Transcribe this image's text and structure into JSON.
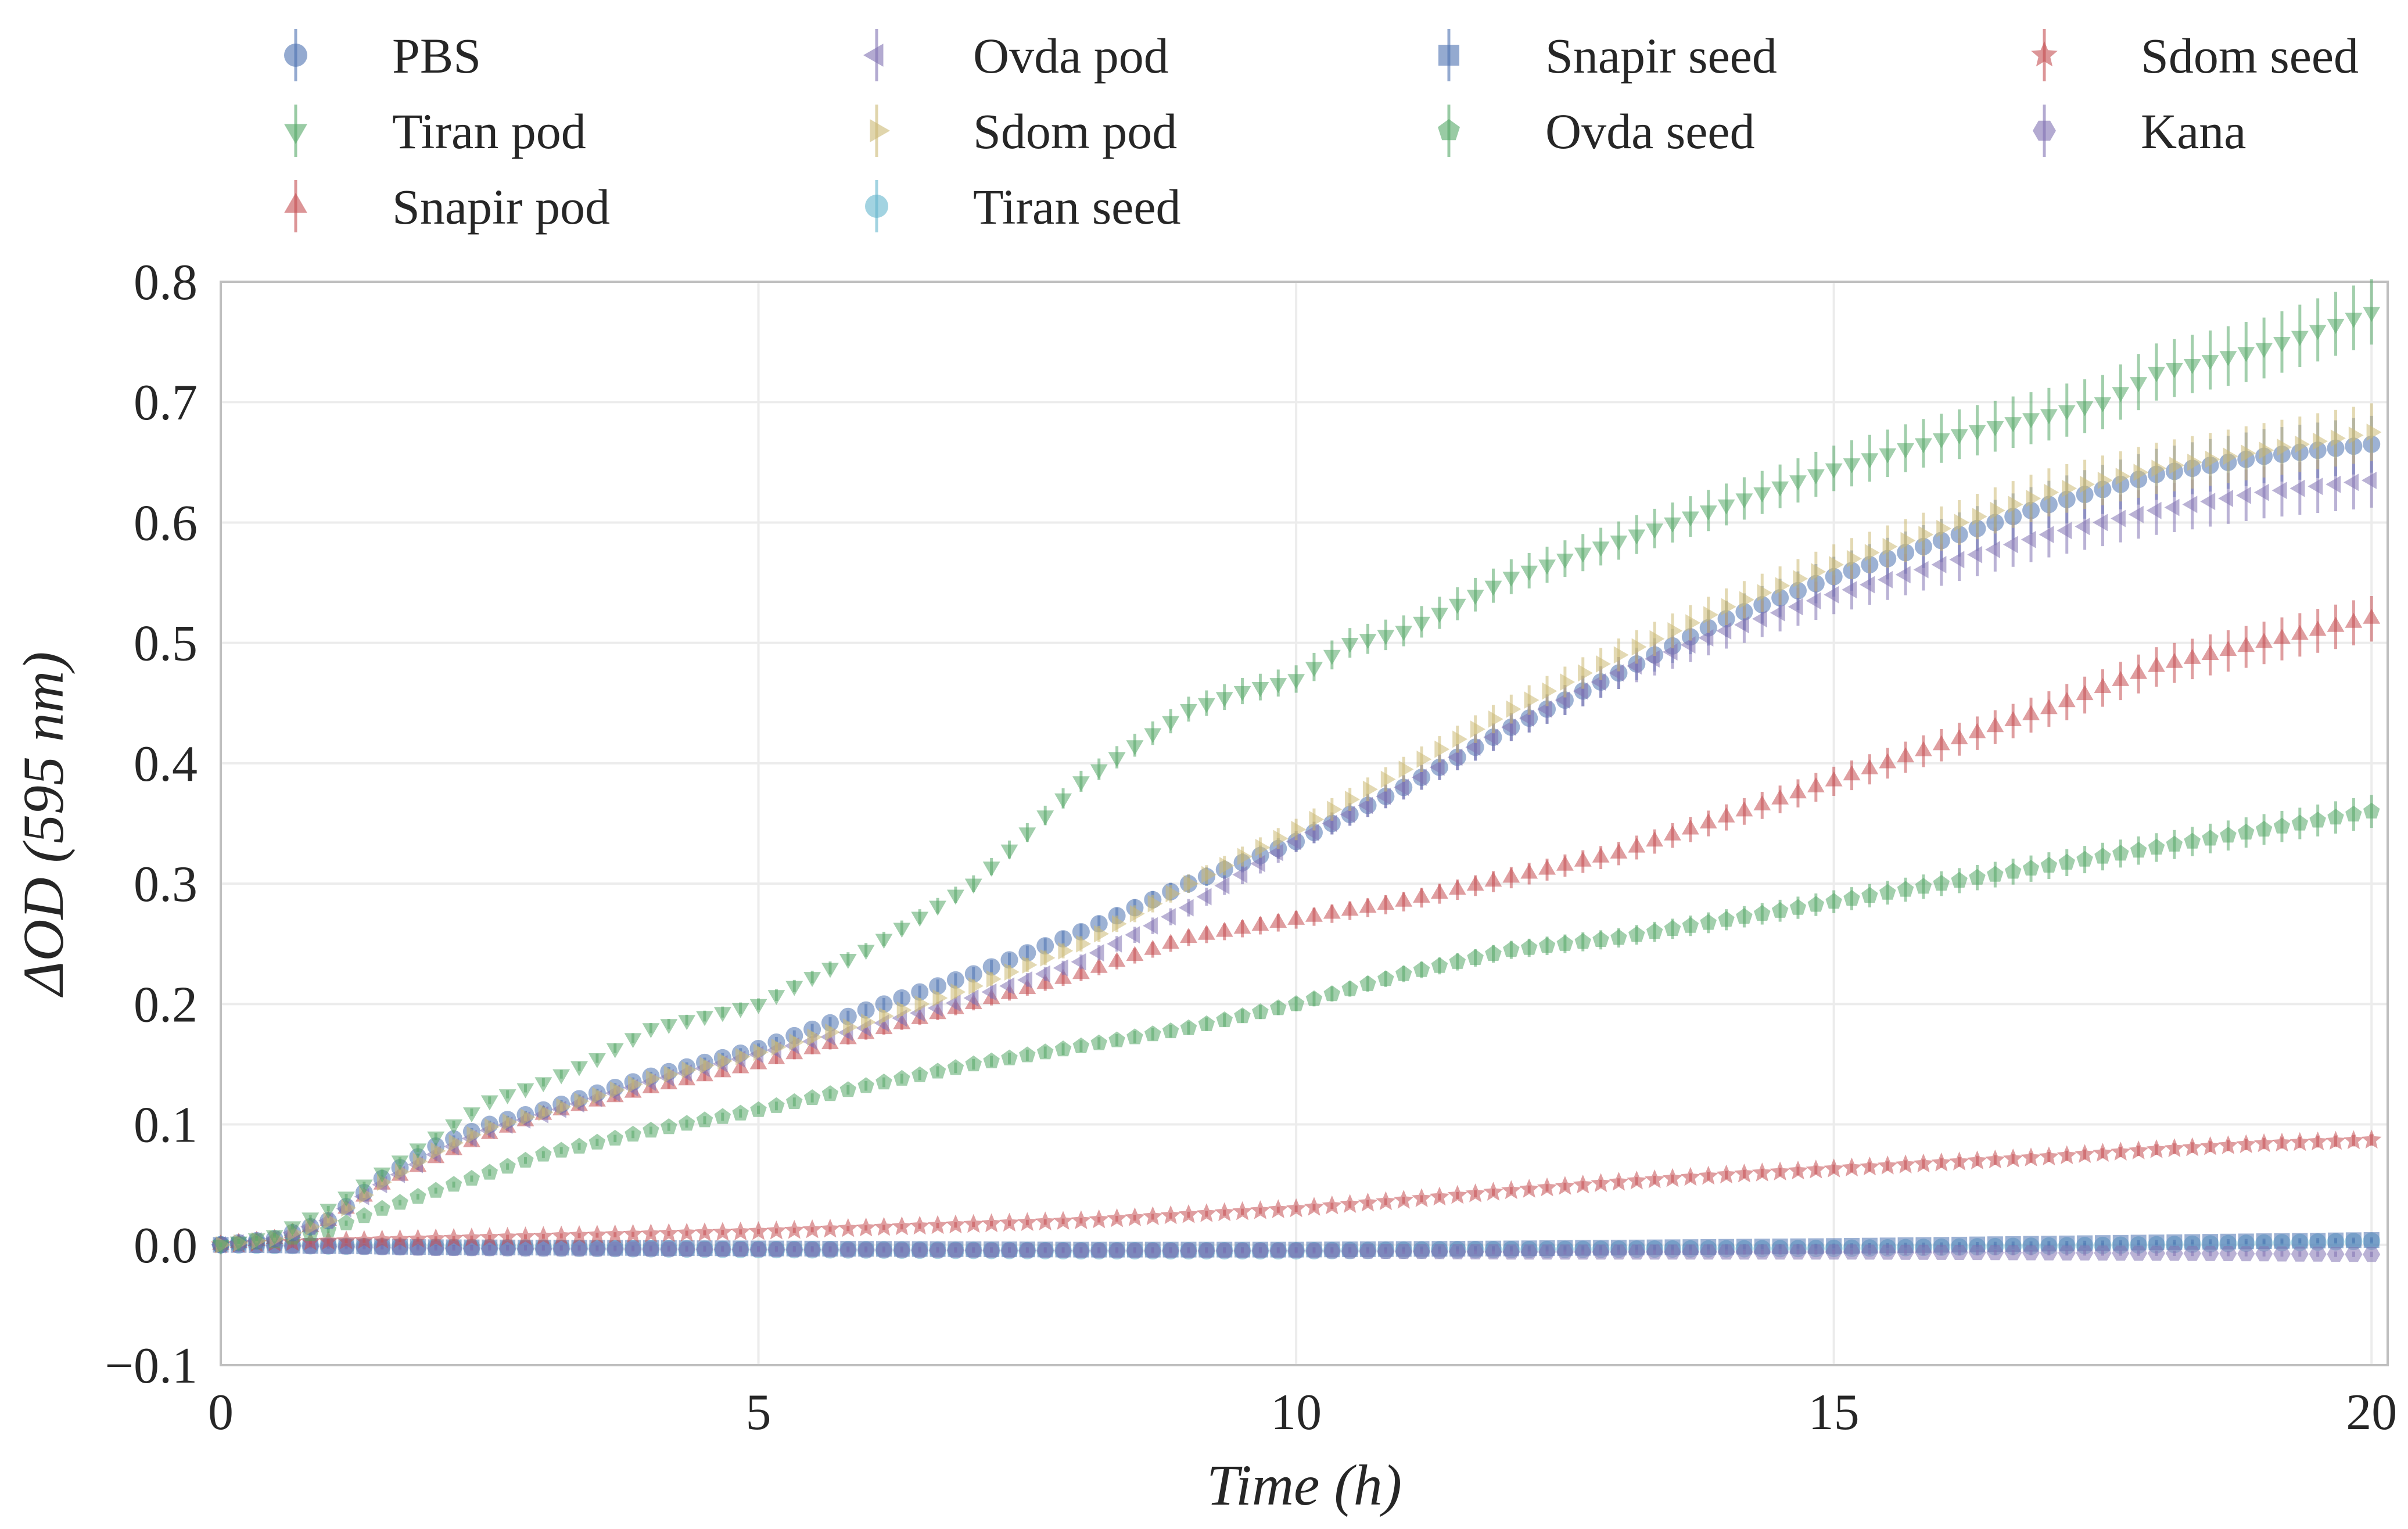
{
  "chart_data": {
    "type": "scatter",
    "title": "",
    "xlabel": "Time (h)",
    "ylabel": "ΔOD (595 nm)",
    "xlim": [
      0,
      20.15
    ],
    "ylim": [
      -0.1,
      0.8
    ],
    "xticks": [
      0,
      5,
      10,
      15,
      20
    ],
    "xtick_labels": [
      "0",
      "5",
      "10",
      "15",
      "20"
    ],
    "yticks": [
      -0.1,
      0.0,
      0.1,
      0.2,
      0.3,
      0.4,
      0.5,
      0.6,
      0.7,
      0.8
    ],
    "ytick_labels": [
      "−0.1",
      "0.0",
      "0.1",
      "0.2",
      "0.3",
      "0.4",
      "0.5",
      "0.6",
      "0.7",
      "0.8"
    ],
    "grid": true,
    "legend_position": "top, above plot, 4 columns",
    "error_bars": true,
    "series": [
      {
        "name": "PBS",
        "marker": "circle",
        "color": "#4C72B0",
        "points": [
          [
            0,
            0
          ],
          [
            0.5,
            0.005
          ],
          [
            1,
            0.02
          ],
          [
            1.5,
            0.055
          ],
          [
            2,
            0.082
          ],
          [
            2.5,
            0.1
          ],
          [
            3,
            0.112
          ],
          [
            4,
            0.14
          ],
          [
            5,
            0.163
          ],
          [
            6,
            0.195
          ],
          [
            7,
            0.225
          ],
          [
            8,
            0.26
          ],
          [
            9,
            0.3
          ],
          [
            10,
            0.335
          ],
          [
            11,
            0.38
          ],
          [
            12,
            0.43
          ],
          [
            13,
            0.475
          ],
          [
            14,
            0.52
          ],
          [
            15,
            0.555
          ],
          [
            16,
            0.585
          ],
          [
            17,
            0.615
          ],
          [
            18,
            0.64
          ],
          [
            19,
            0.655
          ],
          [
            20,
            0.665
          ]
        ]
      },
      {
        "name": "Tiran pod",
        "marker": "triangle-down",
        "color": "#55A868",
        "points": [
          [
            0,
            0
          ],
          [
            0.5,
            0.008
          ],
          [
            1,
            0.03
          ],
          [
            1.5,
            0.06
          ],
          [
            2,
            0.09
          ],
          [
            2.5,
            0.12
          ],
          [
            3,
            0.135
          ],
          [
            3.5,
            0.155
          ],
          [
            4,
            0.18
          ],
          [
            5,
            0.2
          ],
          [
            6,
            0.245
          ],
          [
            7,
            0.3
          ],
          [
            8,
            0.385
          ],
          [
            9,
            0.445
          ],
          [
            9.5,
            0.46
          ],
          [
            10,
            0.47
          ],
          [
            10.5,
            0.5
          ],
          [
            11,
            0.51
          ],
          [
            12,
            0.555
          ],
          [
            13,
            0.585
          ],
          [
            14,
            0.615
          ],
          [
            15,
            0.645
          ],
          [
            16,
            0.67
          ],
          [
            17,
            0.69
          ],
          [
            17.5,
            0.7
          ],
          [
            18,
            0.725
          ],
          [
            19,
            0.745
          ],
          [
            20,
            0.775
          ]
        ]
      },
      {
        "name": "Snapir pod",
        "marker": "triangle-up",
        "color": "#C44E52",
        "points": [
          [
            0,
            0
          ],
          [
            0.5,
            0.005
          ],
          [
            1,
            0.02
          ],
          [
            1.5,
            0.05
          ],
          [
            2,
            0.072
          ],
          [
            2.5,
            0.092
          ],
          [
            3,
            0.108
          ],
          [
            4,
            0.13
          ],
          [
            5,
            0.15
          ],
          [
            6,
            0.175
          ],
          [
            7,
            0.2
          ],
          [
            8,
            0.225
          ],
          [
            9,
            0.255
          ],
          [
            10,
            0.27
          ],
          [
            11,
            0.285
          ],
          [
            12,
            0.305
          ],
          [
            13,
            0.325
          ],
          [
            14,
            0.355
          ],
          [
            15,
            0.385
          ],
          [
            16,
            0.415
          ],
          [
            17,
            0.445
          ],
          [
            18,
            0.48
          ],
          [
            19,
            0.5
          ],
          [
            20,
            0.52
          ]
        ]
      },
      {
        "name": "Ovda pod",
        "marker": "triangle-left",
        "color": "#8172B2",
        "points": [
          [
            0,
            0
          ],
          [
            0.5,
            0.005
          ],
          [
            1,
            0.02
          ],
          [
            1.5,
            0.05
          ],
          [
            2,
            0.075
          ],
          [
            2.5,
            0.095
          ],
          [
            3,
            0.108
          ],
          [
            4,
            0.135
          ],
          [
            5,
            0.158
          ],
          [
            6,
            0.18
          ],
          [
            7,
            0.205
          ],
          [
            8,
            0.235
          ],
          [
            9,
            0.28
          ],
          [
            10,
            0.335
          ],
          [
            11,
            0.38
          ],
          [
            12,
            0.43
          ],
          [
            13,
            0.475
          ],
          [
            14,
            0.51
          ],
          [
            15,
            0.54
          ],
          [
            16,
            0.565
          ],
          [
            17,
            0.59
          ],
          [
            18,
            0.61
          ],
          [
            19,
            0.625
          ],
          [
            20,
            0.635
          ]
        ]
      },
      {
        "name": "Sdom pod",
        "marker": "triangle-right",
        "color": "#CCB974",
        "points": [
          [
            0,
            0
          ],
          [
            0.5,
            0.005
          ],
          [
            1,
            0.02
          ],
          [
            1.5,
            0.052
          ],
          [
            2,
            0.078
          ],
          [
            2.5,
            0.098
          ],
          [
            3,
            0.11
          ],
          [
            4,
            0.138
          ],
          [
            5,
            0.16
          ],
          [
            6,
            0.185
          ],
          [
            7,
            0.215
          ],
          [
            8,
            0.25
          ],
          [
            9,
            0.3
          ],
          [
            10,
            0.345
          ],
          [
            11,
            0.395
          ],
          [
            12,
            0.445
          ],
          [
            13,
            0.49
          ],
          [
            14,
            0.53
          ],
          [
            15,
            0.565
          ],
          [
            16,
            0.595
          ],
          [
            17,
            0.625
          ],
          [
            18,
            0.645
          ],
          [
            19,
            0.66
          ],
          [
            20,
            0.675
          ]
        ]
      },
      {
        "name": "Tiran seed",
        "marker": "circle",
        "color": "#64B5CD",
        "points": [
          [
            0,
            0
          ],
          [
            2,
            -0.002
          ],
          [
            5,
            -0.004
          ],
          [
            8,
            -0.005
          ],
          [
            10,
            -0.005
          ],
          [
            12,
            -0.004
          ],
          [
            15,
            -0.003
          ],
          [
            18,
            0.0
          ],
          [
            20,
            0.003
          ]
        ]
      },
      {
        "name": "Snapir seed",
        "marker": "square",
        "color": "#4C72B0",
        "points": [
          [
            0,
            0
          ],
          [
            2,
            -0.002
          ],
          [
            5,
            -0.003
          ],
          [
            8,
            -0.004
          ],
          [
            10,
            -0.004
          ],
          [
            12,
            -0.003
          ],
          [
            15,
            -0.001
          ],
          [
            18,
            0.002
          ],
          [
            20,
            0.004
          ]
        ]
      },
      {
        "name": "Ovda seed",
        "marker": "pentagon",
        "color": "#55A868",
        "points": [
          [
            0,
            0
          ],
          [
            0.5,
            0.003
          ],
          [
            1,
            0.012
          ],
          [
            1.5,
            0.03
          ],
          [
            2,
            0.045
          ],
          [
            2.5,
            0.06
          ],
          [
            3,
            0.075
          ],
          [
            4,
            0.095
          ],
          [
            5,
            0.112
          ],
          [
            6,
            0.132
          ],
          [
            7,
            0.15
          ],
          [
            8,
            0.165
          ],
          [
            9,
            0.18
          ],
          [
            10,
            0.2
          ],
          [
            11,
            0.225
          ],
          [
            12,
            0.245
          ],
          [
            13,
            0.255
          ],
          [
            14,
            0.27
          ],
          [
            15,
            0.285
          ],
          [
            16,
            0.3
          ],
          [
            17,
            0.315
          ],
          [
            18,
            0.33
          ],
          [
            19,
            0.345
          ],
          [
            20,
            0.36
          ]
        ]
      },
      {
        "name": "Sdom seed",
        "marker": "star",
        "color": "#C44E52",
        "points": [
          [
            0,
            0
          ],
          [
            1,
            0.003
          ],
          [
            2,
            0.005
          ],
          [
            3,
            0.007
          ],
          [
            4,
            0.009
          ],
          [
            5,
            0.011
          ],
          [
            6,
            0.014
          ],
          [
            7,
            0.017
          ],
          [
            8,
            0.02
          ],
          [
            9,
            0.025
          ],
          [
            10,
            0.03
          ],
          [
            11,
            0.037
          ],
          [
            12,
            0.045
          ],
          [
            13,
            0.052
          ],
          [
            14,
            0.058
          ],
          [
            15,
            0.063
          ],
          [
            16,
            0.068
          ],
          [
            17,
            0.073
          ],
          [
            18,
            0.079
          ],
          [
            19,
            0.084
          ],
          [
            20,
            0.087
          ]
        ]
      },
      {
        "name": "Kana",
        "marker": "hexagon",
        "color": "#8172B2",
        "points": [
          [
            0,
            0
          ],
          [
            2,
            -0.003
          ],
          [
            5,
            -0.004
          ],
          [
            8,
            -0.005
          ],
          [
            10,
            -0.005
          ],
          [
            12,
            -0.006
          ],
          [
            15,
            -0.006
          ],
          [
            18,
            -0.007
          ],
          [
            20,
            -0.008
          ]
        ]
      }
    ]
  }
}
